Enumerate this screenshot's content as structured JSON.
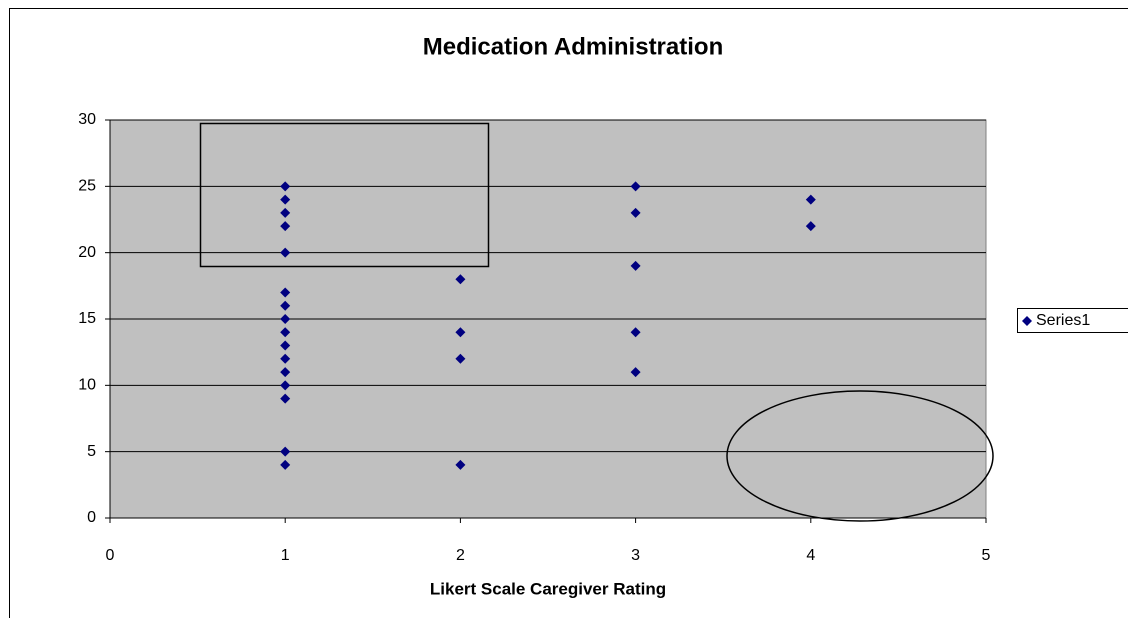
{
  "chart_data": {
    "type": "scatter",
    "title": "Medication Administration",
    "x_label": "Likert Scale Caregiver Rating",
    "series": [
      {
        "name": "Series1",
        "color": "#000080",
        "x": [
          1,
          1,
          1,
          1,
          1,
          1,
          1,
          1,
          1,
          1,
          1,
          1,
          1,
          1,
          1,
          1,
          2,
          2,
          2,
          2,
          3,
          3,
          3,
          3,
          3,
          4,
          4
        ],
        "values": [
          25,
          24,
          23,
          22,
          20,
          17,
          16,
          15,
          14,
          13,
          12,
          11,
          10,
          9,
          5,
          4,
          18,
          14,
          12,
          4,
          25,
          23,
          19,
          14,
          11,
          24,
          22
        ]
      }
    ],
    "xlim": [
      0,
      5
    ],
    "xticks": [
      0,
      1,
      2,
      3,
      4,
      5
    ],
    "ylim": [
      0,
      30
    ],
    "yticks": [
      0,
      5,
      10,
      15,
      20,
      25,
      30
    ],
    "grid": true,
    "legend": "right"
  }
}
